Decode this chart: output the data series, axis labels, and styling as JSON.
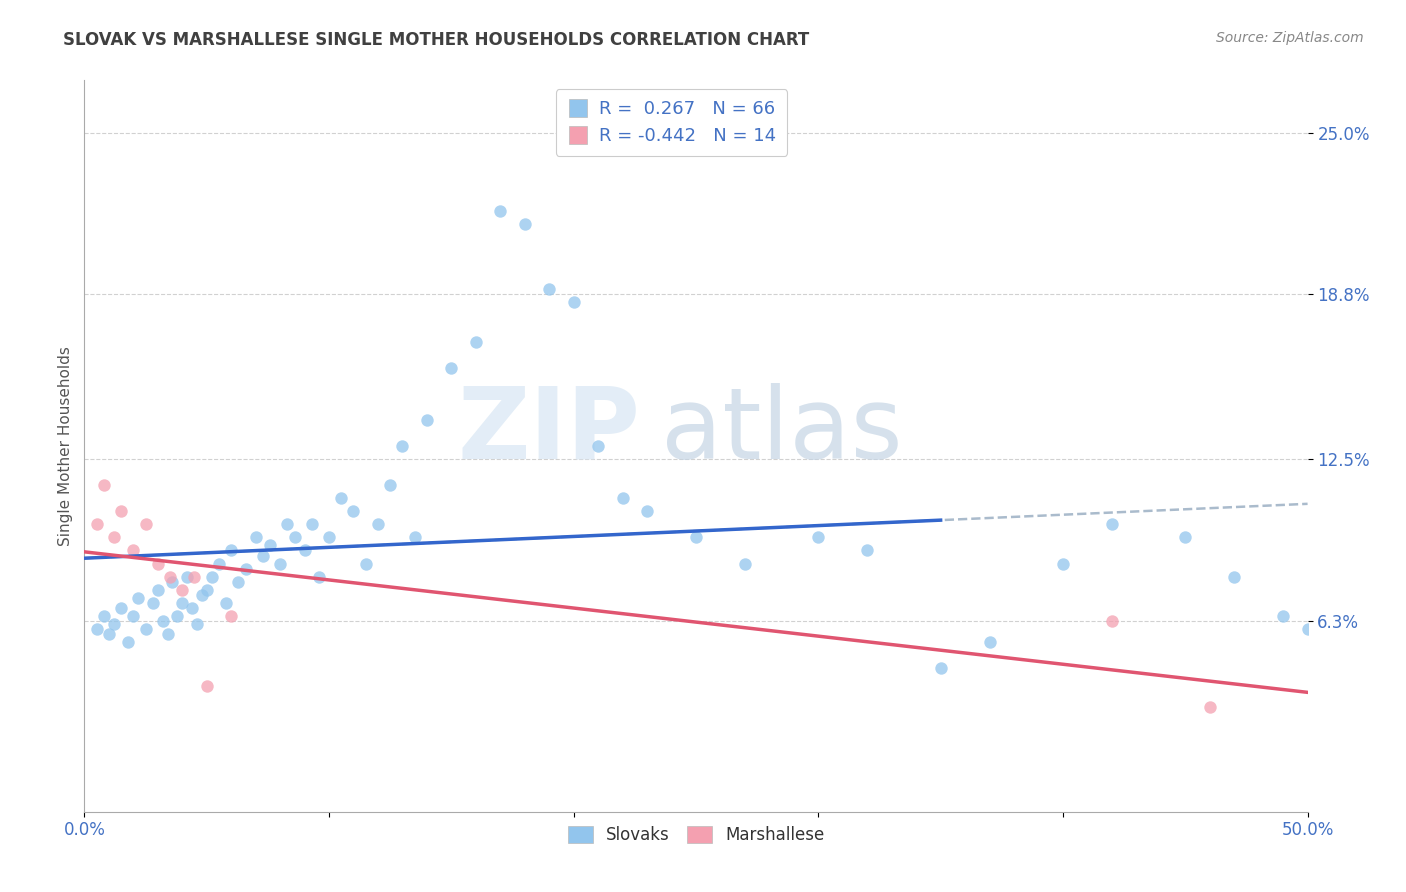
{
  "title": "SLOVAK VS MARSHALLESE SINGLE MOTHER HOUSEHOLDS CORRELATION CHART",
  "source": "Source: ZipAtlas.com",
  "ylabel": "Single Mother Households",
  "xlim": [
    0.0,
    0.5
  ],
  "ylim": [
    -0.01,
    0.27
  ],
  "ytick_vals": [
    0.063,
    0.125,
    0.188,
    0.25
  ],
  "ytick_labels": [
    "6.3%",
    "12.5%",
    "18.8%",
    "25.0%"
  ],
  "xtick_vals": [
    0.0,
    0.1,
    0.2,
    0.3,
    0.4,
    0.5
  ],
  "xtick_labels": [
    "0.0%",
    "",
    "",
    "",
    "",
    "50.0%"
  ],
  "slovak_color": "#92C5ED",
  "marshallese_color": "#F4A0B0",
  "slovak_R": 0.267,
  "slovak_N": 66,
  "marshallese_R": -0.442,
  "marshallese_N": 14,
  "background_color": "#ffffff",
  "grid_color": "#cccccc",
  "title_color": "#404040",
  "axis_label_color": "#555555",
  "tick_label_color": "#4472c4",
  "source_color": "#888888",
  "watermark_zip_color": "#dce9f5",
  "watermark_atlas_color": "#c8d8e8",
  "slovak_scatter_x": [
    0.005,
    0.008,
    0.01,
    0.012,
    0.015,
    0.018,
    0.02,
    0.022,
    0.025,
    0.028,
    0.03,
    0.032,
    0.034,
    0.036,
    0.038,
    0.04,
    0.042,
    0.044,
    0.046,
    0.048,
    0.05,
    0.052,
    0.055,
    0.058,
    0.06,
    0.063,
    0.066,
    0.07,
    0.073,
    0.076,
    0.08,
    0.083,
    0.086,
    0.09,
    0.093,
    0.096,
    0.1,
    0.105,
    0.11,
    0.115,
    0.12,
    0.125,
    0.13,
    0.135,
    0.14,
    0.15,
    0.16,
    0.17,
    0.18,
    0.19,
    0.2,
    0.21,
    0.22,
    0.23,
    0.25,
    0.27,
    0.3,
    0.32,
    0.35,
    0.37,
    0.4,
    0.42,
    0.45,
    0.47,
    0.49,
    0.5
  ],
  "slovak_scatter_y": [
    0.06,
    0.065,
    0.058,
    0.062,
    0.068,
    0.055,
    0.065,
    0.072,
    0.06,
    0.07,
    0.075,
    0.063,
    0.058,
    0.078,
    0.065,
    0.07,
    0.08,
    0.068,
    0.062,
    0.073,
    0.075,
    0.08,
    0.085,
    0.07,
    0.09,
    0.078,
    0.083,
    0.095,
    0.088,
    0.092,
    0.085,
    0.1,
    0.095,
    0.09,
    0.1,
    0.08,
    0.095,
    0.11,
    0.105,
    0.085,
    0.1,
    0.115,
    0.13,
    0.095,
    0.14,
    0.16,
    0.17,
    0.22,
    0.215,
    0.19,
    0.185,
    0.13,
    0.11,
    0.105,
    0.095,
    0.085,
    0.095,
    0.09,
    0.045,
    0.055,
    0.085,
    0.1,
    0.095,
    0.08,
    0.065,
    0.06
  ],
  "marshallese_scatter_x": [
    0.005,
    0.008,
    0.012,
    0.015,
    0.02,
    0.025,
    0.03,
    0.035,
    0.04,
    0.045,
    0.05,
    0.06,
    0.42,
    0.46
  ],
  "marshallese_scatter_y": [
    0.1,
    0.115,
    0.095,
    0.105,
    0.09,
    0.1,
    0.085,
    0.08,
    0.075,
    0.08,
    0.038,
    0.065,
    0.063,
    0.03
  ],
  "blue_trend_x": [
    0.0,
    0.35
  ],
  "blue_trend_y": [
    0.068,
    0.108
  ],
  "pink_trend_x": [
    0.0,
    0.5
  ],
  "pink_trend_y": [
    0.092,
    0.04
  ],
  "dashed_trend_x": [
    0.05,
    0.5
  ],
  "dashed_trend_y": [
    0.078,
    0.13
  ]
}
